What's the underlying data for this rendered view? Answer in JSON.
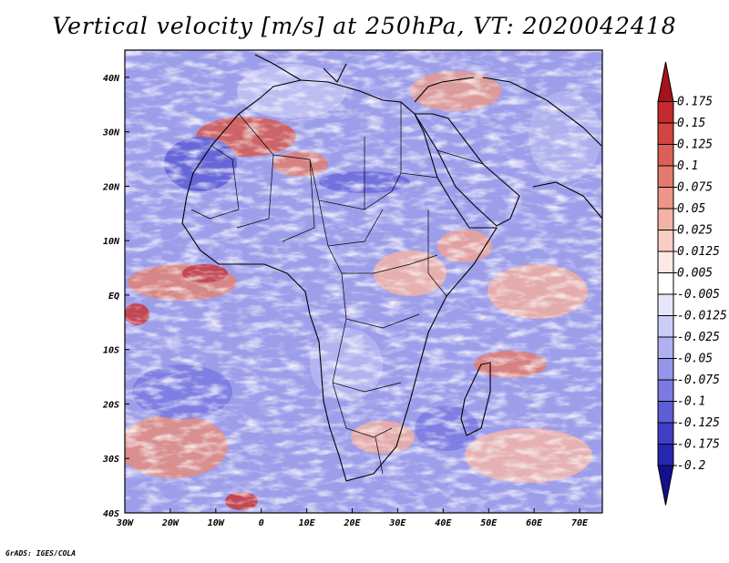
{
  "title": "Vertical velocity [m/s] at 250hPa, VT: 2020042418",
  "credit": "GrADS: IGES/COLA",
  "map": {
    "lon_range": [
      -30,
      75
    ],
    "lat_range": [
      -40,
      45
    ],
    "lat_ticks": [
      {
        "value": 40,
        "label": "40N"
      },
      {
        "value": 30,
        "label": "30N"
      },
      {
        "value": 20,
        "label": "20N"
      },
      {
        "value": 10,
        "label": "10N"
      },
      {
        "value": 0,
        "label": "EQ"
      },
      {
        "value": -10,
        "label": "10S"
      },
      {
        "value": -20,
        "label": "20S"
      },
      {
        "value": -30,
        "label": "30S"
      },
      {
        "value": -40,
        "label": "40S"
      }
    ],
    "lon_ticks": [
      {
        "value": -30,
        "label": "30W"
      },
      {
        "value": -20,
        "label": "20W"
      },
      {
        "value": -10,
        "label": "10W"
      },
      {
        "value": 0,
        "label": "0"
      },
      {
        "value": 10,
        "label": "10E"
      },
      {
        "value": 20,
        "label": "20E"
      },
      {
        "value": 30,
        "label": "30E"
      },
      {
        "value": 40,
        "label": "40E"
      },
      {
        "value": 50,
        "label": "50E"
      },
      {
        "value": 60,
        "label": "60E"
      },
      {
        "value": 70,
        "label": "70E"
      }
    ]
  },
  "colorbar": {
    "labels": [
      "0.175",
      "0.15",
      "0.125",
      "0.1",
      "0.075",
      "0.05",
      "0.025",
      "0.0125",
      "0.005",
      "-0.005",
      "-0.0125",
      "-0.025",
      "-0.05",
      "-0.075",
      "-0.1",
      "-0.125",
      "-0.175",
      "-0.2"
    ],
    "colors": [
      "#a4121d",
      "#c42a2e",
      "#d24441",
      "#dc5f58",
      "#e4796f",
      "#ec9589",
      "#f3b2a6",
      "#f8cdc3",
      "#fde9e4",
      "#ffffff",
      "#e6e6fb",
      "#cccdf6",
      "#b0b1f0",
      "#9596ea",
      "#7a7ae2",
      "#5d5dd6",
      "#3f3fc6",
      "#2626b0",
      "#130f8e"
    ]
  }
}
